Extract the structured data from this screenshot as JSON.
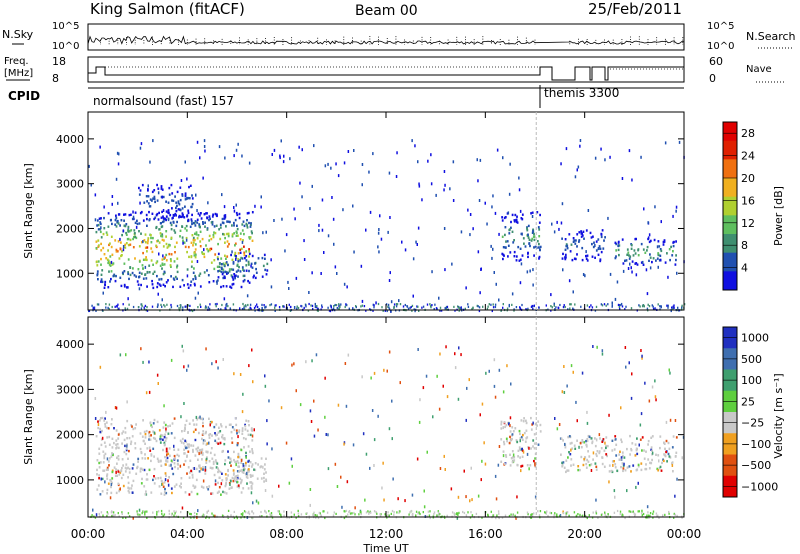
{
  "header": {
    "station": "King Salmon (fitACF)",
    "beam": "Beam 00",
    "date": "25/Feb/2011"
  },
  "noise_panel": {
    "left_label": "N.Sky",
    "right_label": "N.Search",
    "left_ticks": [
      "10^5",
      "10^0"
    ],
    "right_ticks": [
      "10^5",
      "10^0"
    ]
  },
  "freq_panel": {
    "left_label_1": "Freq.",
    "left_label_2": "[MHz]",
    "right_label": "Nave",
    "left_ticks": [
      "18",
      "8"
    ],
    "right_ticks": [
      "60",
      "0"
    ]
  },
  "cpid": {
    "label": "CPID",
    "segments": [
      {
        "name": "normalsound (fast) 157",
        "start_hour": 0,
        "end_hour": 18.05
      },
      {
        "name": "themis 3300",
        "start_hour": 18.05,
        "end_hour": 24
      }
    ]
  },
  "x_axis": {
    "ticks": [
      "00:00",
      "04:00",
      "08:00",
      "12:00",
      "16:00",
      "20:00",
      "00:00"
    ],
    "label": "Time UT"
  },
  "chart_data": [
    {
      "type": "heatmap",
      "title": "",
      "xlabel": "Time UT",
      "ylabel": "Slant Range [km]",
      "xlim_hours": [
        0,
        24
      ],
      "ylim": [
        180,
        4600
      ],
      "yticks": [
        "1000",
        "2000",
        "3000",
        "4000"
      ],
      "colorbar": {
        "label": "Power [dB]",
        "ticks": [
          "4",
          "8",
          "12",
          "16",
          "20",
          "24",
          "28"
        ],
        "range": [
          0,
          30
        ]
      },
      "echo_regions": [
        {
          "t0": 0.3,
          "t1": 6.6,
          "r0": 700,
          "r1": 2400,
          "peak_value": 26
        },
        {
          "t0": 2.0,
          "t1": 4.2,
          "r0": 2200,
          "r1": 3000,
          "peak_value": 8
        },
        {
          "t0": 5.2,
          "t1": 7.2,
          "r0": 900,
          "r1": 1500,
          "peak_value": 10
        },
        {
          "t0": 16.6,
          "t1": 18.2,
          "r0": 1300,
          "r1": 2400,
          "peak_value": 12
        },
        {
          "t0": 19.0,
          "t1": 20.8,
          "r0": 1300,
          "r1": 2000,
          "peak_value": 8
        },
        {
          "t0": 21.2,
          "t1": 23.7,
          "r0": 1200,
          "r1": 1800,
          "peak_value": 14
        }
      ]
    },
    {
      "type": "heatmap",
      "title": "",
      "xlabel": "Time UT",
      "ylabel": "Slant Range [km]",
      "xlim_hours": [
        0,
        24
      ],
      "ylim": [
        180,
        4600
      ],
      "yticks": [
        "1000",
        "2000",
        "3000",
        "4000"
      ],
      "colorbar": {
        "label": "Velocity [m s⁻¹]",
        "ticks": [
          "1000",
          "500",
          "100",
          "25",
          "−25",
          "−100",
          "−500",
          "−1000"
        ]
      },
      "echo_regions": [
        {
          "t0": 0.3,
          "t1": 6.6,
          "r0": 700,
          "r1": 2400,
          "value": "-25 to 25"
        },
        {
          "t0": 5.2,
          "t1": 7.2,
          "r0": 900,
          "r1": 1500,
          "value": "-100 to 100"
        },
        {
          "t0": 16.6,
          "t1": 18.2,
          "r0": 1300,
          "r1": 2400,
          "value": "25 to 100"
        },
        {
          "t0": 19.0,
          "t1": 23.7,
          "r0": 1200,
          "r1": 2000,
          "value": "-25 to 25"
        }
      ]
    }
  ],
  "colors": {
    "power": [
      "#1010e0",
      "#2050b0",
      "#3f8f70",
      "#5fbf5f",
      "#b0d030",
      "#f0b020",
      "#f07010",
      "#e02000",
      "#e00000"
    ],
    "velocity": [
      "#2030c0",
      "#3f6fb0",
      "#3f9f6f",
      "#5fcf3f",
      "#c8c8c8",
      "#f0a020",
      "#e05010",
      "#e00000"
    ],
    "ground_scatter": "#c8c8c8"
  }
}
